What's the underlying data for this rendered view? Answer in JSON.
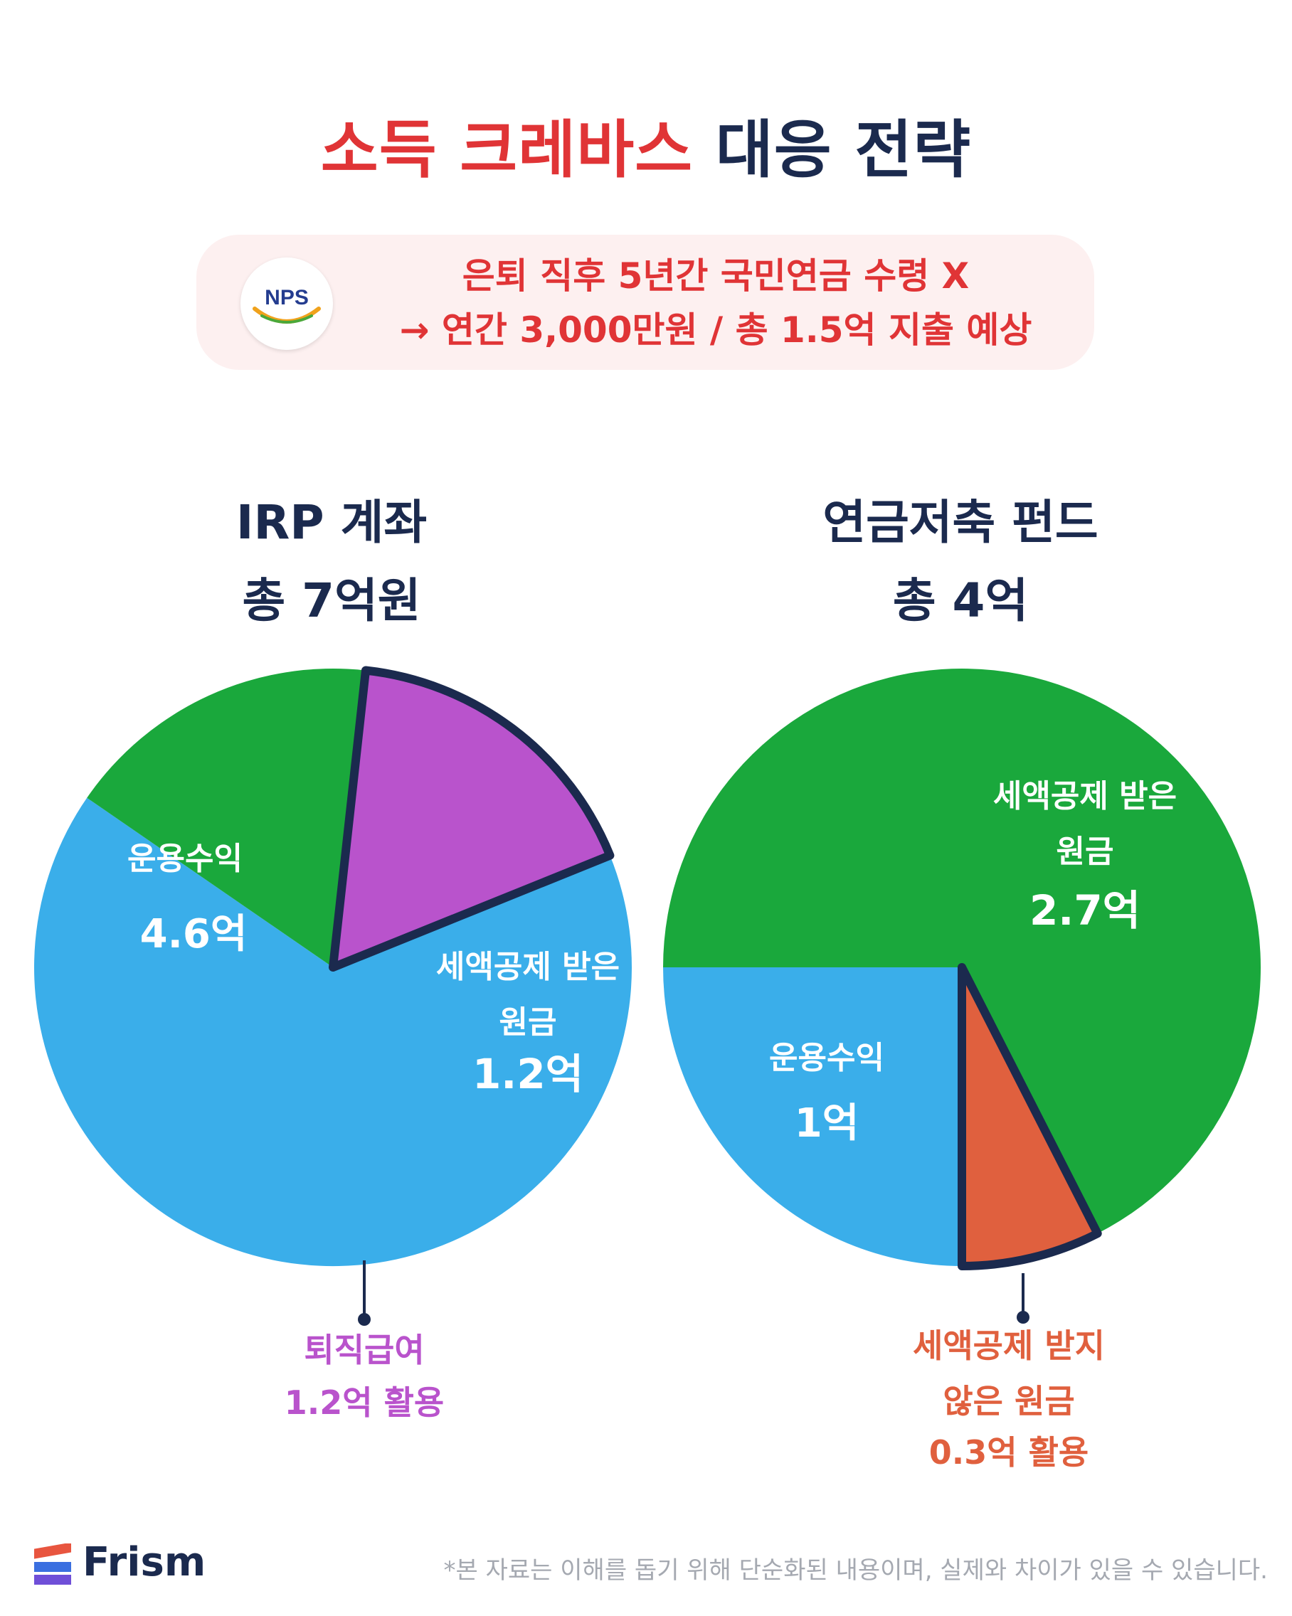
{
  "header": {
    "title_red": "소득 크레바스",
    "title_navy": "대응 전략"
  },
  "notice": {
    "logo_text": "NPS",
    "line1": "은퇴 직후 5년간 국민연금 수령 X",
    "line2": "→ 연간 3,000만원 / 총 1.5억 지출 예상"
  },
  "chart_data": [
    {
      "type": "pie",
      "title": "IRP 계좌",
      "subtitle": "총 7억원",
      "total": 7,
      "slices": [
        {
          "label": "운용수익",
          "value": 4.6,
          "value_text": "4.6억",
          "color": "#3aaeea"
        },
        {
          "label": "세액공제 받은 원금",
          "value": 1.2,
          "value_text": "1.2억",
          "color": "#1aa83c"
        },
        {
          "label": "퇴직급여",
          "value": 1.2,
          "value_text": "1.2억 활용",
          "color": "#b953cc",
          "highlighted": true
        }
      ]
    },
    {
      "type": "pie",
      "title": "연금저축 펀드",
      "subtitle": "총 4억",
      "total": 4,
      "slices": [
        {
          "label": "세액공제 받은 원금",
          "value": 2.7,
          "value_text": "2.7억",
          "color": "#1aa83c"
        },
        {
          "label": "세액공제 받지 않은 원금",
          "value": 0.3,
          "value_text": "0.3억 활용",
          "color": "#e0603e",
          "highlighted": true
        },
        {
          "label": "운용수익",
          "value": 1.0,
          "value_text": "1억",
          "color": "#3aaeea"
        }
      ]
    }
  ],
  "footer": {
    "brand": "Frism",
    "disclaimer": "*본 자료는 이해를 돕기 위해 단순화된 내용이며, 실제와 차이가 있을 수 있습니다."
  },
  "colors": {
    "accent_red": "#e03436",
    "navy": "#1b2a4e",
    "outline": "#1b2a4e"
  }
}
